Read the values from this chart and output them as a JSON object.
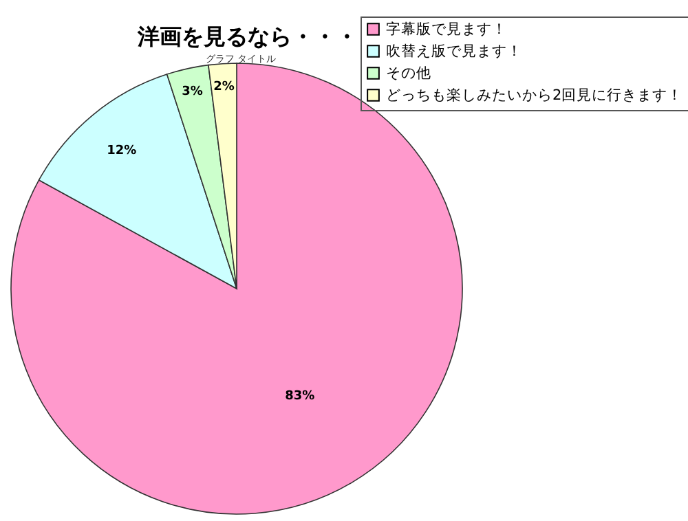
{
  "chart_data": {
    "type": "pie",
    "title": "洋画を見るなら・・・",
    "categories": [
      "字幕版で見ます！",
      "吹替え版で見ます！",
      "その他",
      "どっちも楽しみたいから2回見に行きます！"
    ],
    "values": [
      83,
      12,
      3,
      2
    ],
    "colors": [
      "#ff99cc",
      "#ccffff",
      "#ccffcc",
      "#ffffcc"
    ],
    "value_labels": [
      "83%",
      "12%",
      "3%",
      "2%"
    ],
    "annotations": [
      "グラフ タイトル"
    ],
    "legend": "top right"
  }
}
